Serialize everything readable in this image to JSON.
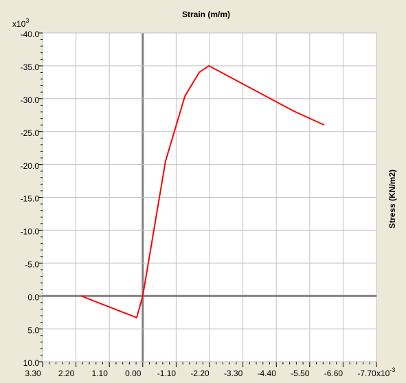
{
  "chart_data": {
    "type": "line",
    "title": "Strain   (m/m)",
    "y_label": "Stress    (KN/m2)",
    "y_multiplier": {
      "base": "x10",
      "exponent": "3"
    },
    "x_multiplier": {
      "base": "x10",
      "exponent": "-3"
    },
    "x": [
      2.03,
      0.2,
      0,
      -0.75,
      -1.39,
      -1.86,
      -2.18,
      -4.98,
      -5.98
    ],
    "values": [
      0,
      3.3,
      0,
      -20.5,
      -30.4,
      -34,
      -35,
      -28.1,
      -26
    ],
    "color": "#ff0000",
    "xlim": [
      3.3,
      -7.7
    ],
    "ylim": [
      10,
      -40
    ],
    "xticks": [
      {
        "value": 3.3,
        "label": "3.30"
      },
      {
        "value": 2.2,
        "label": "2.20"
      },
      {
        "value": 1.1,
        "label": "1.10"
      },
      {
        "value": 0,
        "label": "0.00"
      },
      {
        "value": -1.1,
        "label": "-1.10"
      },
      {
        "value": -2.2,
        "label": "-2.20"
      },
      {
        "value": -3.3,
        "label": "-3.30"
      },
      {
        "value": -4.4,
        "label": "-4.40"
      },
      {
        "value": -5.5,
        "label": "-5.50"
      },
      {
        "value": -6.6,
        "label": "-6.60"
      },
      {
        "value": -7.7,
        "label": "-7.70"
      }
    ],
    "yticks": [
      {
        "value": -40,
        "label": "-40.0"
      },
      {
        "value": -35,
        "label": "-35.0"
      },
      {
        "value": -30,
        "label": "-30.0"
      },
      {
        "value": -25,
        "label": "-25.0"
      },
      {
        "value": -20,
        "label": "-20.0"
      },
      {
        "value": -15,
        "label": "-15.0"
      },
      {
        "value": -10,
        "label": "-10.0"
      },
      {
        "value": -5,
        "label": "-5.0"
      },
      {
        "value": 0,
        "label": "0.0"
      },
      {
        "value": 5,
        "label": "5.0"
      },
      {
        "value": 10,
        "label": "10.0"
      }
    ],
    "grid": true
  }
}
